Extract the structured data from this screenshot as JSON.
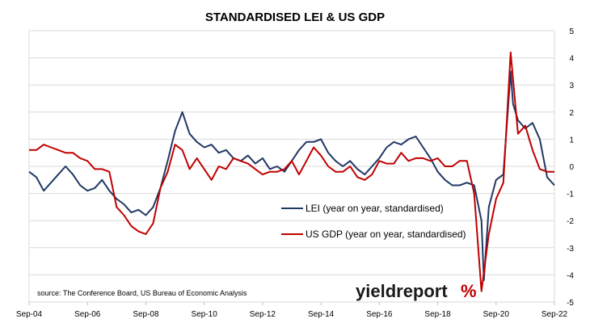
{
  "chart_data": {
    "type": "line",
    "title": "STANDARDISED LEI & US GDP",
    "xlabel": "",
    "ylabel": "",
    "ylim": [
      -5,
      5
    ],
    "y_ticks": [
      5,
      4,
      3,
      2,
      1,
      0,
      -1,
      -2,
      -3,
      -4,
      -5
    ],
    "y_axis_side": "right",
    "x_range": [
      "2004-09",
      "2022-09"
    ],
    "x_ticks": [
      "Sep-04",
      "Sep-06",
      "Sep-08",
      "Sep-10",
      "Sep-12",
      "Sep-14",
      "Sep-16",
      "Sep-18",
      "Sep-20",
      "Sep-22"
    ],
    "grid": "horizontal",
    "legend_placement": "center",
    "series": [
      {
        "name": "LEI (year on year, standardised)",
        "color": "#1f3864",
        "x": [
          "2004-09",
          "2004-12",
          "2005-03",
          "2005-06",
          "2005-09",
          "2005-12",
          "2006-03",
          "2006-06",
          "2006-09",
          "2006-12",
          "2007-03",
          "2007-06",
          "2007-09",
          "2007-12",
          "2008-03",
          "2008-06",
          "2008-09",
          "2008-12",
          "2009-03",
          "2009-06",
          "2009-09",
          "2009-12",
          "2010-03",
          "2010-06",
          "2010-09",
          "2010-12",
          "2011-03",
          "2011-06",
          "2011-09",
          "2011-12",
          "2012-03",
          "2012-06",
          "2012-09",
          "2012-12",
          "2013-03",
          "2013-06",
          "2013-09",
          "2013-12",
          "2014-03",
          "2014-06",
          "2014-09",
          "2014-12",
          "2015-03",
          "2015-06",
          "2015-09",
          "2015-12",
          "2016-03",
          "2016-06",
          "2016-09",
          "2016-12",
          "2017-03",
          "2017-06",
          "2017-09",
          "2017-12",
          "2018-03",
          "2018-06",
          "2018-09",
          "2018-12",
          "2019-03",
          "2019-06",
          "2019-09",
          "2019-12",
          "2020-03",
          "2020-04",
          "2020-06",
          "2020-09",
          "2020-12",
          "2021-03",
          "2021-04",
          "2021-06",
          "2021-09",
          "2021-12",
          "2022-03",
          "2022-06",
          "2022-09"
        ],
        "values": [
          -0.2,
          -0.4,
          -0.9,
          -0.6,
          -0.3,
          0.0,
          -0.3,
          -0.7,
          -0.9,
          -0.8,
          -0.5,
          -0.9,
          -1.2,
          -1.4,
          -1.7,
          -1.6,
          -1.8,
          -1.5,
          -0.8,
          0.2,
          1.3,
          2.0,
          1.2,
          0.9,
          0.7,
          0.8,
          0.5,
          0.6,
          0.3,
          0.2,
          0.4,
          0.1,
          0.3,
          -0.1,
          0.0,
          -0.2,
          0.2,
          0.6,
          0.9,
          0.9,
          1.0,
          0.5,
          0.2,
          0.0,
          0.2,
          -0.1,
          -0.3,
          0.0,
          0.3,
          0.7,
          0.9,
          0.8,
          1.0,
          1.1,
          0.7,
          0.3,
          -0.2,
          -0.5,
          -0.7,
          -0.7,
          -0.6,
          -0.7,
          -2.0,
          -4.2,
          -1.5,
          -0.5,
          -0.3,
          3.5,
          2.3,
          1.7,
          1.4,
          1.6,
          1.0,
          -0.4,
          -0.7
        ]
      },
      {
        "name": "US GDP (year on year, standardised)",
        "color": "#c00000",
        "x": [
          "2004-09",
          "2004-12",
          "2005-03",
          "2005-06",
          "2005-09",
          "2005-12",
          "2006-03",
          "2006-06",
          "2006-09",
          "2006-12",
          "2007-03",
          "2007-06",
          "2007-09",
          "2007-12",
          "2008-03",
          "2008-06",
          "2008-09",
          "2008-12",
          "2009-03",
          "2009-06",
          "2009-09",
          "2009-12",
          "2010-03",
          "2010-06",
          "2010-09",
          "2010-12",
          "2011-03",
          "2011-06",
          "2011-09",
          "2011-12",
          "2012-03",
          "2012-06",
          "2012-09",
          "2012-12",
          "2013-03",
          "2013-06",
          "2013-09",
          "2013-12",
          "2014-03",
          "2014-06",
          "2014-09",
          "2014-12",
          "2015-03",
          "2015-06",
          "2015-09",
          "2015-12",
          "2016-03",
          "2016-06",
          "2016-09",
          "2016-12",
          "2017-03",
          "2017-06",
          "2017-09",
          "2017-12",
          "2018-03",
          "2018-06",
          "2018-09",
          "2018-12",
          "2019-03",
          "2019-06",
          "2019-09",
          "2019-12",
          "2020-03",
          "2020-06",
          "2020-09",
          "2020-12",
          "2021-03",
          "2021-06",
          "2021-09",
          "2021-12",
          "2022-03",
          "2022-06",
          "2022-09"
        ],
        "values": [
          0.6,
          0.6,
          0.8,
          0.7,
          0.6,
          0.5,
          0.5,
          0.3,
          0.2,
          -0.1,
          -0.1,
          -0.2,
          -1.5,
          -1.8,
          -2.2,
          -2.4,
          -2.5,
          -2.1,
          -0.8,
          -0.2,
          0.8,
          0.6,
          -0.1,
          0.3,
          -0.1,
          -0.5,
          0.0,
          -0.1,
          0.3,
          0.2,
          0.1,
          -0.1,
          -0.3,
          -0.2,
          -0.2,
          -0.1,
          0.2,
          -0.3,
          0.2,
          0.7,
          0.4,
          0.0,
          -0.2,
          -0.2,
          0.0,
          -0.4,
          -0.5,
          -0.3,
          0.2,
          0.1,
          0.1,
          0.5,
          0.2,
          0.3,
          0.3,
          0.2,
          0.3,
          0.0,
          0.0,
          0.2,
          0.2,
          -1.0,
          -4.6,
          -2.5,
          -1.2,
          -0.6,
          4.2,
          1.2,
          1.5,
          0.6,
          -0.1,
          -0.2,
          -0.2
        ]
      }
    ],
    "annotations": {
      "source": "source: The Conference Board, US Bureau of Economic Analysis",
      "logo_text": "yieldreport",
      "logo_symbol": "%"
    }
  }
}
